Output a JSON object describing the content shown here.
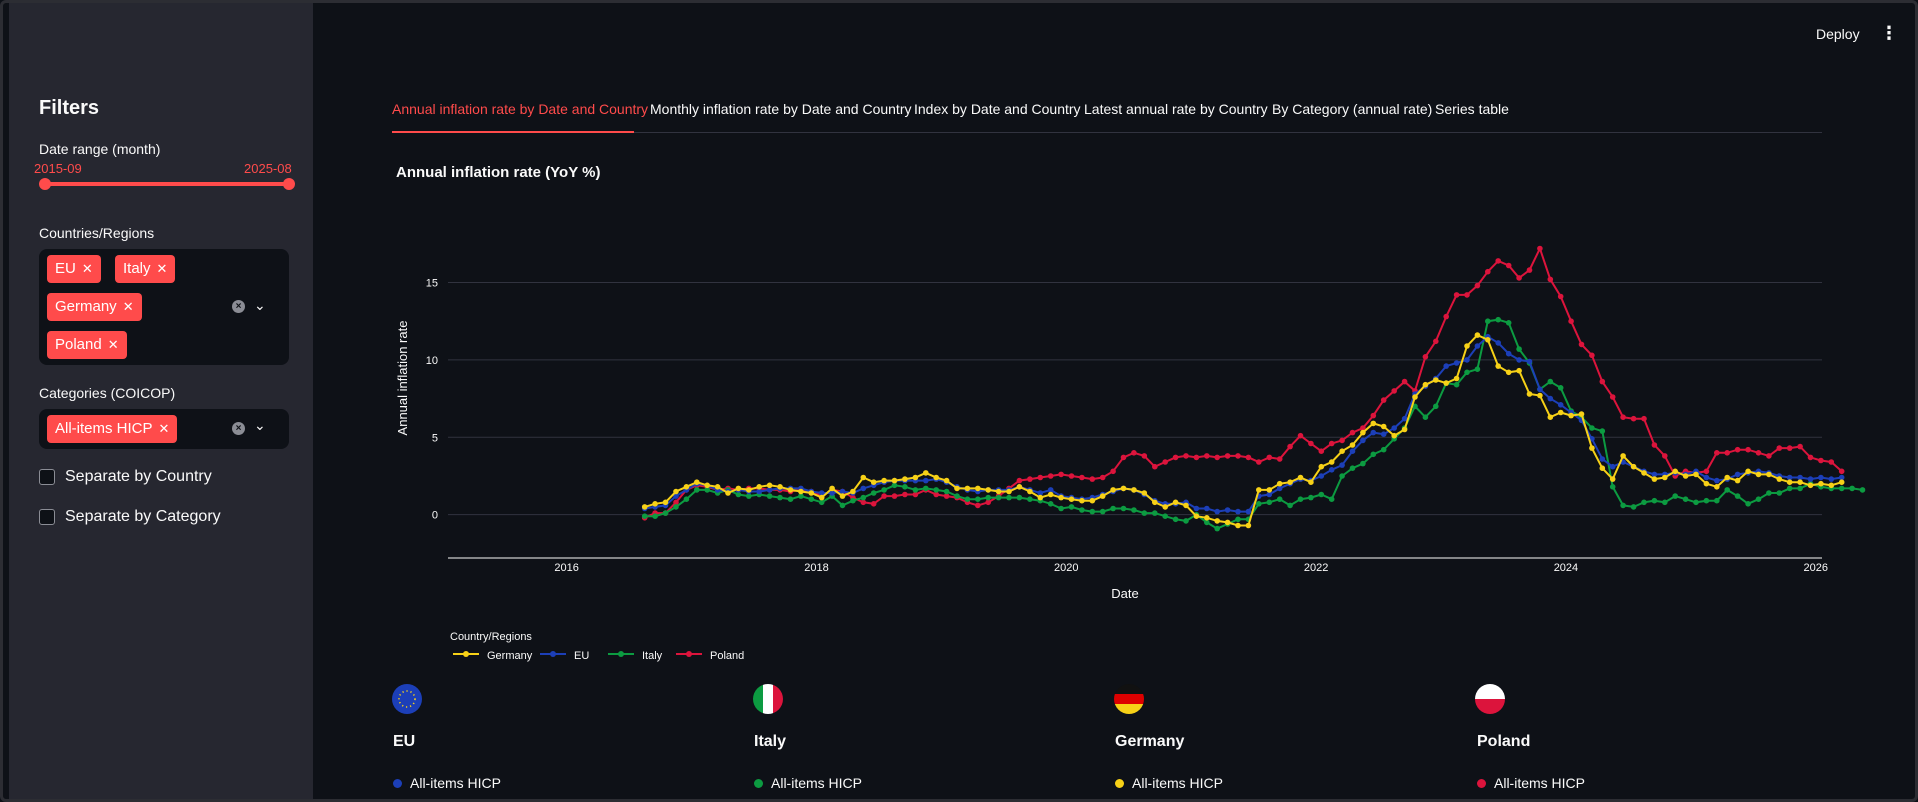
{
  "header": {
    "deploy_label": "Deploy",
    "menu_icon": "kebab-menu-icon"
  },
  "sidebar": {
    "title": "Filters",
    "date_range": {
      "label": "Date range (month)",
      "start": "2015-09",
      "end": "2025-08"
    },
    "countries": {
      "label": "Countries/Regions",
      "tags": [
        "EU",
        "Italy",
        "Germany",
        "Poland"
      ]
    },
    "categories": {
      "label": "Categories (COICOP)",
      "tags": [
        "All-items HICP"
      ]
    },
    "separate_country": "Separate by Country",
    "separate_category": "Separate by Category",
    "accent": "#ff4b4b"
  },
  "tabs": [
    "Annual inflation rate by Date and Country",
    "Monthly inflation rate by Date and Country",
    "Index by Date and Country",
    "Latest annual rate by Country",
    "By Category (annual rate)",
    "Series table"
  ],
  "chart_data": {
    "type": "line",
    "title": "Annual inflation rate (YoY %)",
    "xlabel": "Date",
    "ylabel": "Annual inflation rate",
    "x_start": 2016.625,
    "x_step": 0.08333,
    "xlim": [
      2015.05,
      2026.05
    ],
    "ylim": [
      -2.8,
      18.2
    ],
    "x_ticks": [
      "2016",
      "2018",
      "2020",
      "2022",
      "2024",
      "2026"
    ],
    "y_ticks": [
      "0",
      "5",
      "10",
      "15"
    ],
    "legend_title": "Country/Regions",
    "series": [
      {
        "name": "Germany",
        "color": "#f7d117",
        "values": [
          0.5,
          0.7,
          0.8,
          1.5,
          1.8,
          2.1,
          1.9,
          1.8,
          1.4,
          1.7,
          1.6,
          1.8,
          1.9,
          1.8,
          1.6,
          1.5,
          1.4,
          1.1,
          1.7,
          1.2,
          1.5,
          2.4,
          2.1,
          2.2,
          2.2,
          2.3,
          2.4,
          2.7,
          2.4,
          2.2,
          1.7,
          1.7,
          1.7,
          1.6,
          1.5,
          1.5,
          1.8,
          1.5,
          1.1,
          1.3,
          1.1,
          1.0,
          0.9,
          0.9,
          1.2,
          1.6,
          1.7,
          1.6,
          1.4,
          0.8,
          0.5,
          0.8,
          0.6,
          -0.1,
          -0.2,
          -0.4,
          -0.5,
          -0.7,
          -0.7,
          1.6,
          1.6,
          2.0,
          2.1,
          2.4,
          2.1,
          3.1,
          3.4,
          4.1,
          4.5,
          5.3,
          5.9,
          5.7,
          5.1,
          5.5,
          7.6,
          8.4,
          8.7,
          8.5,
          8.8,
          10.9,
          11.6,
          11.3,
          9.6,
          9.2,
          9.3,
          7.8,
          7.7,
          6.3,
          6.6,
          6.4,
          6.5,
          4.3,
          3.0,
          2.3,
          3.8,
          3.1,
          2.7,
          2.3,
          2.4,
          2.8,
          2.5,
          2.6,
          2.0,
          1.8,
          2.4,
          2.2,
          2.8,
          2.6,
          2.6,
          2.3,
          2.1,
          2.1,
          1.9,
          2.0,
          1.9,
          2.1
        ]
      },
      {
        "name": "EU",
        "color": "#1c3fb8",
        "values": [
          0.4,
          0.5,
          0.6,
          1.2,
          1.6,
          2.0,
          1.9,
          1.6,
          1.5,
          1.6,
          1.5,
          1.5,
          1.6,
          1.7,
          1.7,
          1.7,
          1.5,
          1.4,
          1.4,
          1.5,
          1.4,
          1.7,
          1.9,
          2.1,
          2.2,
          2.2,
          2.2,
          2.2,
          2.3,
          2.1,
          1.8,
          1.6,
          1.5,
          1.6,
          1.6,
          1.6,
          1.8,
          1.6,
          1.4,
          1.6,
          1.2,
          1.1,
          1.0,
          1.1,
          1.3,
          1.5,
          1.7,
          1.6,
          1.3,
          0.9,
          0.7,
          0.7,
          0.8,
          0.4,
          0.4,
          0.2,
          0.3,
          0.2,
          0.2,
          1.2,
          1.3,
          1.7,
          2.0,
          2.3,
          2.2,
          2.5,
          2.9,
          3.2,
          4.1,
          4.8,
          5.3,
          5.2,
          5.6,
          6.2,
          7.8,
          8.3,
          8.8,
          9.6,
          9.8,
          10.0,
          10.9,
          11.5,
          11.1,
          10.4,
          10.0,
          9.9,
          8.1,
          7.5,
          7.1,
          6.6,
          6.1,
          4.9,
          3.6,
          3.1,
          3.4,
          3.1,
          2.8,
          2.6,
          2.6,
          2.7,
          2.6,
          2.8,
          2.4,
          2.2,
          2.3,
          2.6,
          2.7,
          2.8,
          2.7,
          2.5,
          2.4,
          2.4,
          2.3,
          2.4,
          2.3,
          2.4
        ]
      },
      {
        "name": "Italy",
        "color": "#0c9b41",
        "values": [
          -0.1,
          -0.1,
          0.1,
          0.5,
          1.0,
          1.6,
          1.6,
          1.4,
          1.6,
          1.3,
          1.2,
          1.3,
          1.2,
          1.1,
          1.0,
          1.2,
          1.0,
          0.8,
          1.2,
          0.6,
          0.9,
          1.1,
          1.4,
          1.6,
          1.9,
          1.8,
          1.6,
          1.7,
          1.6,
          1.5,
          1.2,
          1.0,
          1.0,
          1.1,
          1.1,
          1.1,
          1.1,
          1.0,
          0.9,
          0.7,
          0.4,
          0.5,
          0.3,
          0.2,
          0.2,
          0.4,
          0.4,
          0.3,
          0.1,
          0.1,
          -0.1,
          -0.3,
          -0.4,
          0.0,
          -0.5,
          -0.9,
          -0.6,
          -0.3,
          -0.3,
          0.7,
          0.8,
          1.0,
          0.6,
          1.0,
          1.1,
          1.3,
          1.0,
          2.5,
          3.0,
          3.3,
          3.9,
          4.2,
          4.9,
          5.6,
          7.0,
          6.3,
          7.0,
          8.5,
          8.4,
          9.2,
          9.4,
          12.5,
          12.6,
          12.4,
          10.7,
          9.8,
          8.1,
          8.6,
          8.2,
          6.7,
          6.3,
          5.6,
          5.4,
          1.8,
          0.6,
          0.5,
          0.8,
          0.9,
          0.8,
          1.2,
          1.0,
          0.8,
          0.9,
          0.9,
          1.6,
          1.2,
          0.7,
          1.0,
          1.4,
          1.4,
          1.7,
          1.7,
          2.0,
          1.8,
          1.7,
          1.7,
          1.7,
          1.6
        ]
      },
      {
        "name": "Poland",
        "color": "#dc143c",
        "values": [
          -0.2,
          0.1,
          0.1,
          0.8,
          1.6,
          1.9,
          1.8,
          1.6,
          1.7,
          1.6,
          1.7,
          1.7,
          1.6,
          1.6,
          1.5,
          1.6,
          1.5,
          1.2,
          1.6,
          1.5,
          1.1,
          0.8,
          0.7,
          1.2,
          1.2,
          1.3,
          1.3,
          1.6,
          1.3,
          1.2,
          1.1,
          0.8,
          0.6,
          0.8,
          1.2,
          1.7,
          2.2,
          2.3,
          2.4,
          2.5,
          2.6,
          2.5,
          2.4,
          2.3,
          2.4,
          2.8,
          3.7,
          4.0,
          3.8,
          3.1,
          3.4,
          3.7,
          3.8,
          3.7,
          3.8,
          3.7,
          3.8,
          3.8,
          3.7,
          3.4,
          3.7,
          3.6,
          4.4,
          5.1,
          4.6,
          4.1,
          4.6,
          4.8,
          5.3,
          5.6,
          6.4,
          7.4,
          8.0,
          8.6,
          8.0,
          10.2,
          11.2,
          12.8,
          14.2,
          14.2,
          14.8,
          15.7,
          16.4,
          16.1,
          15.3,
          15.8,
          17.2,
          15.2,
          14.1,
          12.5,
          11.0,
          10.3,
          8.6,
          7.6,
          6.3,
          6.2,
          6.2,
          4.5,
          3.8,
          2.5,
          2.8,
          2.7,
          2.8,
          4.0,
          4.0,
          4.2,
          4.2,
          4.0,
          3.8,
          4.3,
          4.3,
          4.4,
          3.7,
          3.5,
          3.4,
          2.8
        ]
      }
    ]
  },
  "cards": [
    {
      "name": "EU",
      "item": "All-items HICP",
      "color": "#1c3fb8",
      "flag": "eu-flag"
    },
    {
      "name": "Italy",
      "item": "All-items HICP",
      "color": "#0c9b41",
      "flag": "italy-flag"
    },
    {
      "name": "Germany",
      "item": "All-items HICP",
      "color": "#f7d117",
      "flag": "germany-flag"
    },
    {
      "name": "Poland",
      "item": "All-items HICP",
      "color": "#dc143c",
      "flag": "poland-flag"
    }
  ]
}
